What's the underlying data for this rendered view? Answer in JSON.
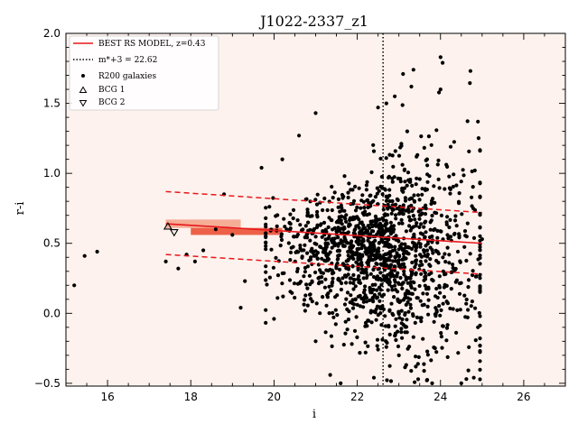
{
  "chart_data": {
    "type": "scatter",
    "title": "J1022-2337_z1",
    "xlabel": "i",
    "ylabel": "r-i",
    "xlim": [
      15.0,
      27.0
    ],
    "ylim": [
      -0.52,
      2.0
    ],
    "xticks": [
      16,
      18,
      20,
      22,
      24,
      26
    ],
    "xtick_labels": [
      "16",
      "18",
      "20",
      "22",
      "24",
      "26"
    ],
    "yticks": [
      -0.5,
      0.0,
      0.5,
      1.0,
      1.5,
      2.0
    ],
    "ytick_labels": [
      "−0.5",
      "0.0",
      "0.5",
      "1.0",
      "1.5",
      "2.0"
    ],
    "background_color": "#fdf2ee",
    "legend": {
      "position": "top-left",
      "entries": [
        {
          "label": "BEST RS MODEL, z=0.43",
          "style": "solid-line",
          "color": "#e8171b"
        },
        {
          "label": "m*+3 = 22.62",
          "style": "dotted-line",
          "color": "#000000"
        },
        {
          "label": "R200 galaxies",
          "style": "dot",
          "color": "#000000"
        },
        {
          "label": "BCG 1",
          "style": "triangle-up",
          "color": "#000000"
        },
        {
          "label": "BCG 2",
          "style": "triangle-down",
          "color": "#000000"
        }
      ]
    },
    "red_sequence": {
      "color": "#e8171b",
      "x": [
        17.4,
        25.0
      ],
      "center": [
        0.64,
        0.5
      ],
      "upper": [
        0.87,
        0.72
      ],
      "lower": [
        0.42,
        0.28
      ]
    },
    "mstar_line": {
      "x": 22.62,
      "label": "m*+3 = 22.62"
    },
    "highlight_bands": [
      {
        "x0": 17.4,
        "x1": 19.2,
        "y0": 0.61,
        "y1": 0.67,
        "color": "#f4a58c"
      },
      {
        "x0": 18.0,
        "x1": 20.2,
        "y0": 0.56,
        "y1": 0.61,
        "color": "#ea5134"
      }
    ],
    "bcgs": [
      {
        "name": "BCG 1",
        "x": 17.45,
        "y": 0.62,
        "marker": "triangle-up"
      },
      {
        "name": "BCG 2",
        "x": 17.6,
        "y": 0.58,
        "marker": "triangle-down"
      }
    ],
    "galaxies": {
      "name": "R200 galaxies",
      "explicit_points": [
        [
          15.2,
          0.2
        ],
        [
          15.45,
          0.41
        ],
        [
          15.75,
          0.44
        ],
        [
          17.4,
          0.37
        ],
        [
          17.7,
          0.32
        ],
        [
          17.9,
          0.42
        ],
        [
          18.1,
          0.37
        ],
        [
          18.3,
          0.45
        ],
        [
          18.6,
          0.6
        ],
        [
          18.8,
          0.85
        ],
        [
          19.0,
          0.56
        ],
        [
          19.3,
          0.23
        ],
        [
          19.2,
          0.04
        ],
        [
          20.0,
          -0.04
        ],
        [
          21.0,
          -0.2
        ],
        [
          21.35,
          -0.44
        ],
        [
          21.6,
          -0.5
        ],
        [
          22.4,
          -0.46
        ],
        [
          22.2,
          -0.28
        ],
        [
          22.7,
          -0.24
        ],
        [
          23.0,
          -0.3
        ],
        [
          23.2,
          1.3
        ],
        [
          23.3,
          1.62
        ],
        [
          23.35,
          1.74
        ],
        [
          23.1,
          1.71
        ],
        [
          24.0,
          1.83
        ],
        [
          24.05,
          1.79
        ],
        [
          24.0,
          1.6
        ],
        [
          24.9,
          1.37
        ],
        [
          25.0,
          0.53
        ],
        [
          24.9,
          -0.1
        ],
        [
          24.8,
          -0.46
        ],
        [
          24.5,
          -0.5
        ],
        [
          23.8,
          -0.5
        ],
        [
          21.0,
          1.43
        ],
        [
          20.6,
          1.27
        ],
        [
          19.7,
          1.04
        ],
        [
          20.2,
          1.1
        ],
        [
          22.7,
          1.5
        ],
        [
          22.9,
          1.55
        ],
        [
          22.5,
          1.47
        ]
      ],
      "generated": {
        "count": 1450,
        "seed": 2337,
        "x_mean": 22.6,
        "x_sd": 1.2,
        "x_range": [
          19.8,
          24.95
        ],
        "rs_fraction": 0.5,
        "blue_mean": 0.3,
        "spread_base": 0.12,
        "spread_slope": 0.09,
        "faint_offset": 0.15
      }
    }
  }
}
